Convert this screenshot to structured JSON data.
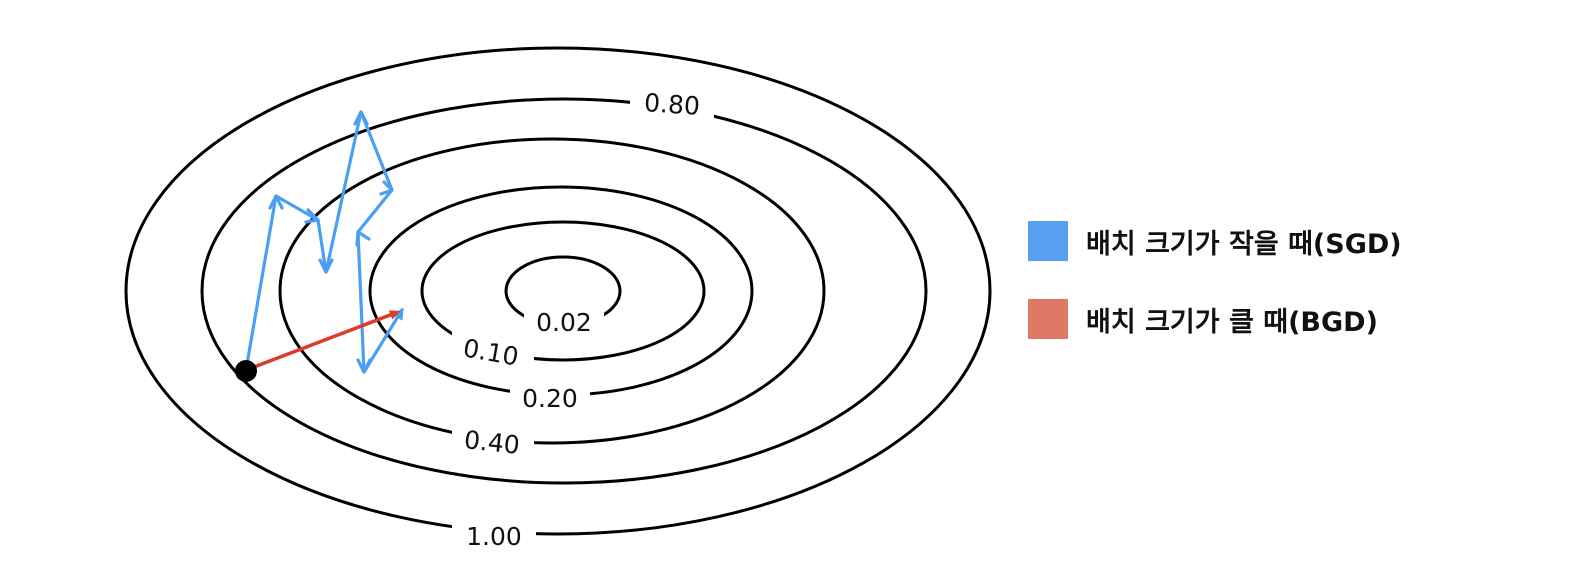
{
  "contours": [
    {
      "label": "1.00"
    },
    {
      "label": "0.80"
    },
    {
      "label": "0.40"
    },
    {
      "label": "0.20"
    },
    {
      "label": "0.10"
    },
    {
      "label": "0.02"
    }
  ],
  "legend": {
    "sgd": {
      "label": "배치 크기가 작을 때(SGD)",
      "color": "#5aa0f0"
    },
    "bgd": {
      "label": "배치 크기가 클 때(BGD)",
      "color": "#e07866"
    }
  },
  "colors": {
    "sgd_path": "#4b9ff2",
    "bgd_path": "#dd3a2a",
    "start_point": "#000000"
  }
}
